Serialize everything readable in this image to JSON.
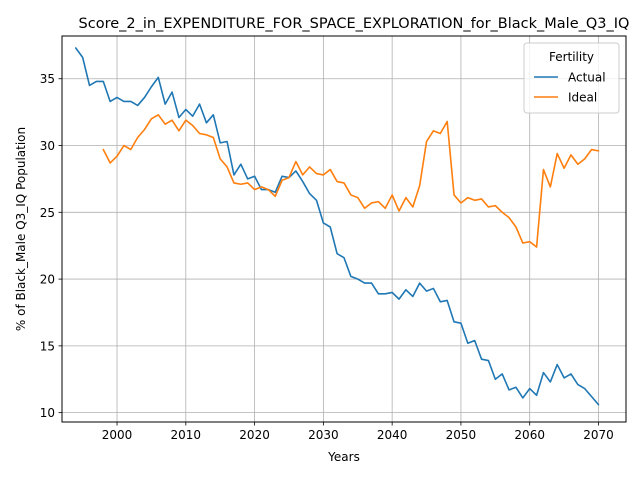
{
  "chart_data": {
    "type": "line",
    "title": "Score_2_in_EXPENDITURE_FOR_SPACE_EXPLORATION_for_Black_Male_Q3_IQ",
    "xlabel": "Years",
    "ylabel": "% of Black_Male Q3_IQ Population",
    "xlim": [
      1992,
      2074
    ],
    "ylim": [
      9.3,
      38.2
    ],
    "xticks": [
      2000,
      2010,
      2020,
      2030,
      2040,
      2050,
      2060,
      2070
    ],
    "yticks": [
      10,
      15,
      20,
      25,
      30,
      35
    ],
    "grid": true,
    "legend": {
      "title": "Fertility",
      "placement": "top-right"
    },
    "series": [
      {
        "name": "Actual",
        "color": "#1f77b4",
        "x": [
          1994,
          1995,
          1996,
          1997,
          1998,
          1999,
          2000,
          2001,
          2002,
          2003,
          2004,
          2005,
          2006,
          2007,
          2008,
          2009,
          2010,
          2011,
          2012,
          2013,
          2014,
          2015,
          2016,
          2017,
          2018,
          2019,
          2020,
          2021,
          2022,
          2023,
          2024,
          2025,
          2026,
          2027,
          2028,
          2029,
          2030,
          2031,
          2032,
          2033,
          2034,
          2035,
          2036,
          2037,
          2038,
          2039,
          2040,
          2041,
          2042,
          2043,
          2044,
          2045,
          2046,
          2047,
          2048,
          2049,
          2050,
          2051,
          2052,
          2053,
          2054,
          2055,
          2056,
          2057,
          2058,
          2059,
          2060,
          2061,
          2062,
          2063,
          2064,
          2065,
          2066,
          2067,
          2068,
          2069,
          2070
        ],
        "y": [
          37.3,
          36.6,
          34.5,
          34.8,
          34.8,
          33.3,
          33.6,
          33.3,
          33.3,
          33.0,
          33.6,
          34.4,
          35.1,
          33.1,
          34.0,
          32.1,
          32.7,
          32.2,
          33.1,
          31.7,
          32.3,
          30.2,
          30.3,
          27.8,
          28.6,
          27.5,
          27.7,
          26.7,
          26.7,
          26.5,
          27.7,
          27.6,
          28.1,
          27.3,
          26.4,
          25.9,
          24.2,
          23.9,
          21.9,
          21.6,
          20.2,
          20.0,
          19.7,
          19.7,
          18.9,
          18.9,
          19.0,
          18.5,
          19.2,
          18.7,
          19.7,
          19.1,
          19.3,
          18.3,
          18.4,
          16.8,
          16.7,
          15.2,
          15.4,
          14.0,
          13.9,
          12.5,
          12.9,
          11.7,
          11.9,
          11.1,
          11.8,
          11.3,
          13.0,
          12.3,
          13.6,
          12.6,
          12.9,
          12.1,
          11.8,
          11.2,
          10.6
        ]
      },
      {
        "name": "Ideal",
        "color": "#ff7f0e",
        "x": [
          1998,
          1999,
          2000,
          2001,
          2002,
          2003,
          2004,
          2005,
          2006,
          2007,
          2008,
          2009,
          2010,
          2011,
          2012,
          2013,
          2014,
          2015,
          2016,
          2017,
          2018,
          2019,
          2020,
          2021,
          2022,
          2023,
          2024,
          2025,
          2026,
          2027,
          2028,
          2029,
          2030,
          2031,
          2032,
          2033,
          2034,
          2035,
          2036,
          2037,
          2038,
          2039,
          2040,
          2041,
          2042,
          2043,
          2044,
          2045,
          2046,
          2047,
          2048,
          2049,
          2050,
          2051,
          2052,
          2053,
          2054,
          2055,
          2056,
          2057,
          2058,
          2059,
          2060,
          2061,
          2062,
          2063,
          2064,
          2065,
          2066,
          2067,
          2068,
          2069,
          2070
        ],
        "y": [
          29.7,
          28.7,
          29.2,
          30.0,
          29.7,
          30.6,
          31.2,
          32.0,
          32.3,
          31.6,
          31.9,
          31.1,
          31.9,
          31.5,
          30.9,
          30.8,
          30.6,
          29.0,
          28.4,
          27.2,
          27.1,
          27.2,
          26.7,
          26.9,
          26.7,
          26.2,
          27.4,
          27.6,
          28.8,
          27.8,
          28.4,
          27.9,
          27.8,
          28.2,
          27.3,
          27.2,
          26.3,
          26.1,
          25.3,
          25.7,
          25.8,
          25.3,
          26.3,
          25.1,
          26.1,
          25.4,
          27.0,
          30.3,
          31.1,
          30.9,
          31.8,
          26.3,
          25.7,
          26.1,
          25.9,
          26.0,
          25.4,
          25.5,
          25.0,
          24.6,
          23.9,
          22.7,
          22.8,
          22.4,
          28.2,
          26.9,
          29.4,
          28.3,
          29.3,
          28.6,
          29.0,
          29.7,
          29.6
        ]
      }
    ]
  }
}
